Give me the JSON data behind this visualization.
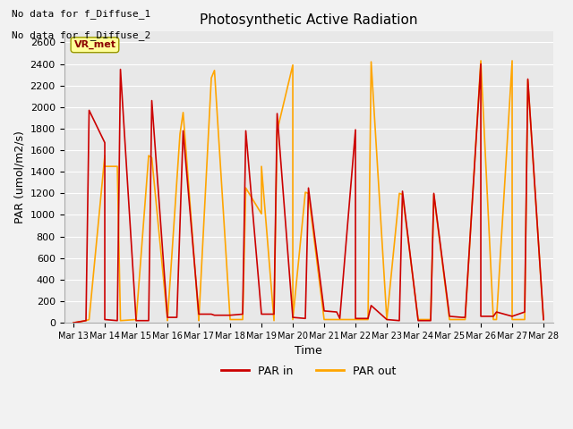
{
  "title": "Photosynthetic Active Radiation",
  "xlabel": "Time",
  "ylabel": "PAR (umol/m2/s)",
  "ylim": [
    0,
    2700
  ],
  "yticks": [
    0,
    200,
    400,
    600,
    800,
    1000,
    1200,
    1400,
    1600,
    1800,
    2000,
    2200,
    2400,
    2600
  ],
  "note_line1": "No data for f_Diffuse_1",
  "note_line2": "No data for f_Diffuse_2",
  "legend_label": "VR_met",
  "par_in_label": "PAR in",
  "par_out_label": "PAR out",
  "par_in_color": "#CC0000",
  "par_out_color": "#FFA500",
  "bg_color": "#E8E8E8",
  "fig_color": "#F2F2F2",
  "x_dates": [
    "Mar 13",
    "Mar 14",
    "Mar 15",
    "Mar 16",
    "Mar 17",
    "Mar 18",
    "Mar 19",
    "Mar 20",
    "Mar 21",
    "Mar 22",
    "Mar 23",
    "Mar 24",
    "Mar 25",
    "Mar 26",
    "Mar 27",
    "Mar 28"
  ],
  "par_in_x": [
    0,
    0.4,
    0.5,
    1.0,
    1.0,
    1.4,
    1.5,
    2.0,
    2.0,
    2.4,
    2.5,
    3.0,
    3.0,
    3.3,
    3.5,
    4.0,
    4.0,
    4.4,
    4.5,
    5.0,
    5.0,
    5.4,
    5.5,
    6.0,
    6.0,
    6.4,
    6.5,
    7.0,
    7.0,
    7.4,
    7.5,
    8.0,
    8.0,
    8.4,
    8.5,
    9.0,
    9.0,
    9.4,
    9.5,
    10.0,
    10.0,
    10.4,
    10.5,
    11.0,
    11.0,
    11.4,
    11.5,
    12.0,
    12.0,
    12.4,
    12.5,
    13.0,
    13.0,
    13.4,
    13.5,
    14.0,
    14.0,
    14.4,
    14.5,
    15.0
  ],
  "par_in_y": [
    0,
    20,
    1970,
    1670,
    30,
    20,
    2350,
    20,
    20,
    20,
    2060,
    50,
    50,
    50,
    1780,
    80,
    80,
    80,
    70,
    70,
    70,
    80,
    1780,
    80,
    80,
    80,
    1940,
    50,
    50,
    40,
    1250,
    110,
    110,
    100,
    40,
    1790,
    40,
    40,
    160,
    30,
    30,
    20,
    1220,
    20,
    20,
    20,
    1200,
    60,
    60,
    50,
    50,
    2400,
    60,
    60,
    100,
    60,
    60,
    100,
    2260,
    30
  ],
  "par_out_x": [
    0,
    0.4,
    0.5,
    1.0,
    1.0,
    1.4,
    1.5,
    2.0,
    2.0,
    2.4,
    2.5,
    3.0,
    3.0,
    3.4,
    3.5,
    4.0,
    4.0,
    4.4,
    4.5,
    5.0,
    5.0,
    5.4,
    5.5,
    6.0,
    6.0,
    6.4,
    6.5,
    7.0,
    7.0,
    7.4,
    7.5,
    8.0,
    8.0,
    8.4,
    8.5,
    9.0,
    9.0,
    9.4,
    9.5,
    10.0,
    10.0,
    10.4,
    10.5,
    11.0,
    11.0,
    11.4,
    11.5,
    12.0,
    12.0,
    12.4,
    12.5,
    13.0,
    13.0,
    13.4,
    13.5,
    14.0,
    14.0,
    14.4,
    14.5,
    15.0
  ],
  "par_out_y": [
    0,
    20,
    30,
    1550,
    1450,
    1450,
    20,
    30,
    20,
    1550,
    1530,
    30,
    20,
    1750,
    1950,
    30,
    20,
    2270,
    2340,
    30,
    30,
    30,
    1250,
    1010,
    1450,
    20,
    1780,
    2390,
    30,
    1210,
    1200,
    30,
    30,
    30,
    30,
    30,
    30,
    30,
    2420,
    30,
    30,
    1200,
    1190,
    30,
    30,
    30,
    1190,
    30,
    30,
    30,
    30,
    2430,
    2430,
    30,
    30,
    2430,
    30,
    30,
    2250,
    30
  ]
}
